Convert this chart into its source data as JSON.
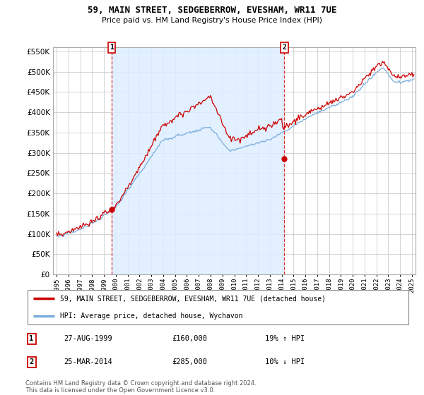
{
  "title": "59, MAIN STREET, SEDGEBERROW, EVESHAM, WR11 7UE",
  "subtitle": "Price paid vs. HM Land Registry's House Price Index (HPI)",
  "legend_line1": "59, MAIN STREET, SEDGEBERROW, EVESHAM, WR11 7UE (detached house)",
  "legend_line2": "HPI: Average price, detached house, Wychavon",
  "annotation1_label": "1",
  "annotation1_date": "27-AUG-1999",
  "annotation1_price": "£160,000",
  "annotation1_hpi": "19% ↑ HPI",
  "annotation2_label": "2",
  "annotation2_date": "25-MAR-2014",
  "annotation2_price": "£285,000",
  "annotation2_hpi": "10% ↓ HPI",
  "footnote": "Contains HM Land Registry data © Crown copyright and database right 2024.\nThis data is licensed under the Open Government Licence v3.0.",
  "sale1_year": 1999.65,
  "sale1_value": 160000,
  "sale2_year": 2014.23,
  "sale2_value": 285000,
  "red_color": "#cc0000",
  "blue_color": "#7aacdc",
  "fill_color": "#ddeeff",
  "ylim_min": 0,
  "ylim_max": 560000,
  "xlim_min": 1994.7,
  "xlim_max": 2025.3
}
